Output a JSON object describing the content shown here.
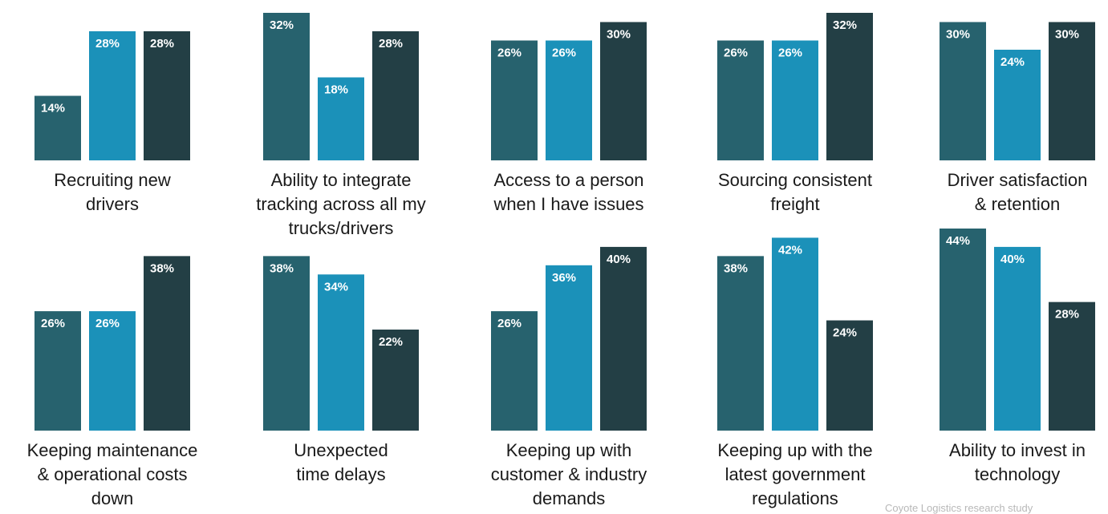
{
  "colors": {
    "series1": "#27626e",
    "series2": "#1b91b9",
    "series3": "#233f45"
  },
  "source_note": "Coyote Logistics research study",
  "chart_data": [
    {
      "type": "bar",
      "category": [
        "Recruiting new",
        "drivers"
      ],
      "values": [
        14,
        28,
        28
      ],
      "labels": [
        "14%",
        "28%",
        "28%"
      ],
      "ylim": [
        0,
        32
      ]
    },
    {
      "type": "bar",
      "category": [
        "Ability to integrate",
        "tracking across all my",
        "trucks/drivers"
      ],
      "values": [
        32,
        18,
        28
      ],
      "labels": [
        "32%",
        "18%",
        "28%"
      ],
      "ylim": [
        0,
        32
      ]
    },
    {
      "type": "bar",
      "category": [
        "Access to a person",
        "when I have issues"
      ],
      "values": [
        26,
        26,
        30
      ],
      "labels": [
        "26%",
        "26%",
        "30%"
      ],
      "ylim": [
        0,
        32
      ]
    },
    {
      "type": "bar",
      "category": [
        "Sourcing consistent",
        "freight"
      ],
      "values": [
        26,
        26,
        32
      ],
      "labels": [
        "26%",
        "26%",
        "32%"
      ],
      "ylim": [
        0,
        32
      ]
    },
    {
      "type": "bar",
      "category": [
        "Driver satisfaction",
        "& retention"
      ],
      "values": [
        30,
        24,
        30
      ],
      "labels": [
        "30%",
        "24%",
        "30%"
      ],
      "ylim": [
        0,
        32
      ]
    },
    {
      "type": "bar",
      "category": [
        "Keeping maintenance",
        "& operational costs",
        "down"
      ],
      "values": [
        26,
        26,
        38
      ],
      "labels": [
        "26%",
        "26%",
        "38%"
      ],
      "ylim": [
        0,
        44
      ]
    },
    {
      "type": "bar",
      "category": [
        "Unexpected",
        "time delays"
      ],
      "values": [
        38,
        34,
        22
      ],
      "labels": [
        "38%",
        "34%",
        "22%"
      ],
      "ylim": [
        0,
        44
      ]
    },
    {
      "type": "bar",
      "category": [
        "Keeping up with",
        "customer & industry",
        "demands"
      ],
      "values": [
        26,
        36,
        40
      ],
      "labels": [
        "26%",
        "36%",
        "40%"
      ],
      "ylim": [
        0,
        44
      ]
    },
    {
      "type": "bar",
      "category": [
        "Keeping up with the",
        "latest government",
        "regulations"
      ],
      "values": [
        38,
        42,
        24
      ],
      "labels": [
        "38%",
        "42%",
        "24%"
      ],
      "ylim": [
        0,
        44
      ]
    },
    {
      "type": "bar",
      "category": [
        "Ability to invest in",
        "technology"
      ],
      "values": [
        44,
        40,
        28
      ],
      "labels": [
        "44%",
        "40%",
        "28%"
      ],
      "ylim": [
        0,
        44
      ]
    }
  ]
}
